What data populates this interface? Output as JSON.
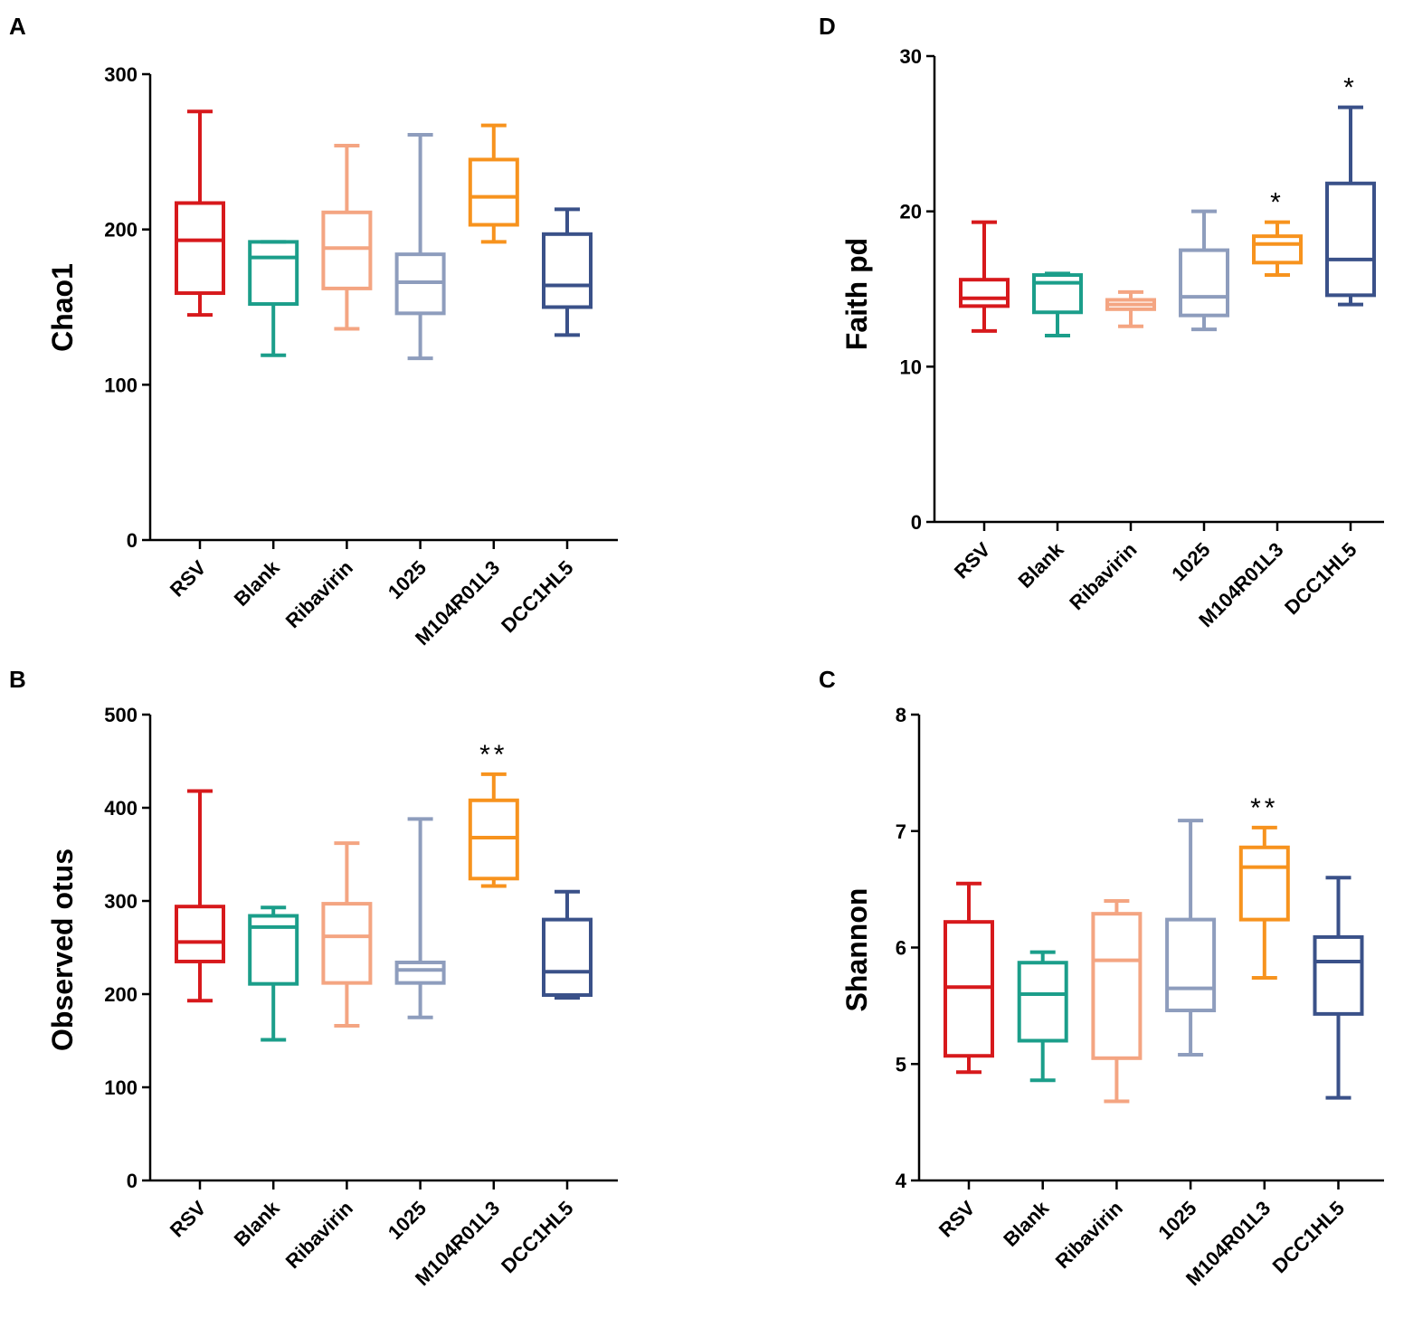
{
  "groups": [
    {
      "name": "RSV",
      "color": "#d7191c"
    },
    {
      "name": "Blank",
      "color": "#1b9e8a"
    },
    {
      "name": "Ribavirin",
      "color": "#f4a582"
    },
    {
      "name": "1025",
      "color": "#8e9dbd"
    },
    {
      "name": "M104R01L3",
      "color": "#f7931e"
    },
    {
      "name": "DCC1HL5",
      "color": "#3a5189"
    }
  ],
  "chart_data": [
    {
      "panel": "A",
      "type": "boxplot",
      "ylabel": "Chao1",
      "ylim": [
        0,
        300
      ],
      "yticks": [
        0,
        100,
        200,
        300
      ],
      "categories": [
        "RSV",
        "Blank",
        "Ribavirin",
        "1025",
        "M104R01L3",
        "DCC1HL5"
      ],
      "boxes": [
        {
          "min": 145,
          "q1": 159,
          "median": 193,
          "q3": 217,
          "max": 276,
          "signif": ""
        },
        {
          "min": 119,
          "q1": 152,
          "median": 182,
          "q3": 192,
          "max": 192,
          "signif": ""
        },
        {
          "min": 136,
          "q1": 162,
          "median": 188,
          "q3": 211,
          "max": 254,
          "signif": ""
        },
        {
          "min": 117,
          "q1": 146,
          "median": 166,
          "q3": 184,
          "max": 261,
          "signif": ""
        },
        {
          "min": 192,
          "q1": 203,
          "median": 221,
          "q3": 245,
          "max": 267,
          "signif": ""
        },
        {
          "min": 132,
          "q1": 150,
          "median": 164,
          "q3": 197,
          "max": 213,
          "signif": ""
        }
      ]
    },
    {
      "panel": "D",
      "type": "boxplot",
      "ylabel": "Faith pd",
      "ylim": [
        0,
        30
      ],
      "yticks": [
        0,
        10,
        20,
        30
      ],
      "categories": [
        "RSV",
        "Blank",
        "Ribavirin",
        "1025",
        "M104R01L3",
        "DCC1HL5"
      ],
      "boxes": [
        {
          "min": 12.3,
          "q1": 13.9,
          "median": 14.4,
          "q3": 15.6,
          "max": 19.3,
          "signif": ""
        },
        {
          "min": 12.0,
          "q1": 13.5,
          "median": 15.4,
          "q3": 15.9,
          "max": 16.0,
          "signif": ""
        },
        {
          "min": 12.6,
          "q1": 13.7,
          "median": 14.0,
          "q3": 14.3,
          "max": 14.8,
          "signif": ""
        },
        {
          "min": 12.4,
          "q1": 13.3,
          "median": 14.5,
          "q3": 17.5,
          "max": 20.0,
          "signif": ""
        },
        {
          "min": 15.9,
          "q1": 16.7,
          "median": 17.9,
          "q3": 18.4,
          "max": 19.3,
          "signif": "*"
        },
        {
          "min": 14.0,
          "q1": 14.6,
          "median": 16.9,
          "q3": 21.8,
          "max": 26.7,
          "signif": "*"
        }
      ]
    },
    {
      "panel": "B",
      "type": "boxplot",
      "ylabel": "Observed otus",
      "ylim": [
        0,
        500
      ],
      "yticks": [
        0,
        100,
        200,
        300,
        400,
        500
      ],
      "categories": [
        "RSV",
        "Blank",
        "Ribavirin",
        "1025",
        "M104R01L3",
        "DCC1HL5"
      ],
      "boxes": [
        {
          "min": 193,
          "q1": 235,
          "median": 256,
          "q3": 294,
          "max": 418,
          "signif": ""
        },
        {
          "min": 151,
          "q1": 211,
          "median": 272,
          "q3": 284,
          "max": 293,
          "signif": ""
        },
        {
          "min": 166,
          "q1": 212,
          "median": 262,
          "q3": 297,
          "max": 362,
          "signif": ""
        },
        {
          "min": 175,
          "q1": 212,
          "median": 226,
          "q3": 234,
          "max": 388,
          "signif": ""
        },
        {
          "min": 316,
          "q1": 324,
          "median": 368,
          "q3": 408,
          "max": 436,
          "signif": "**"
        },
        {
          "min": 196,
          "q1": 199,
          "median": 224,
          "q3": 280,
          "max": 310,
          "signif": ""
        }
      ]
    },
    {
      "panel": "C",
      "type": "boxplot",
      "ylabel": "Shannon",
      "ylim": [
        4,
        8
      ],
      "yticks": [
        4,
        5,
        6,
        7,
        8
      ],
      "categories": [
        "RSV",
        "Blank",
        "Ribavirin",
        "1025",
        "M104R01L3",
        "DCC1HL5"
      ],
      "boxes": [
        {
          "min": 4.93,
          "q1": 5.07,
          "median": 5.66,
          "q3": 6.22,
          "max": 6.55,
          "signif": ""
        },
        {
          "min": 4.86,
          "q1": 5.2,
          "median": 5.6,
          "q3": 5.87,
          "max": 5.96,
          "signif": ""
        },
        {
          "min": 4.68,
          "q1": 5.05,
          "median": 5.89,
          "q3": 6.29,
          "max": 6.4,
          "signif": ""
        },
        {
          "min": 5.08,
          "q1": 5.46,
          "median": 5.65,
          "q3": 6.24,
          "max": 7.09,
          "signif": ""
        },
        {
          "min": 5.74,
          "q1": 6.24,
          "median": 6.69,
          "q3": 6.86,
          "max": 7.03,
          "signif": "**"
        },
        {
          "min": 4.71,
          "q1": 5.43,
          "median": 5.88,
          "q3": 6.09,
          "max": 6.6,
          "signif": ""
        }
      ]
    }
  ]
}
